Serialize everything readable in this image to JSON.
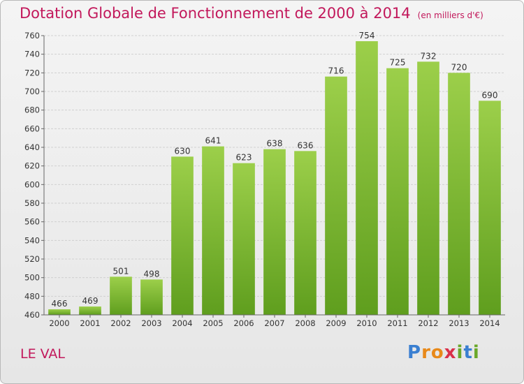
{
  "chart_data": {
    "type": "bar",
    "title": "Dotation Globale de Fonctionnement de 2000 à 2014",
    "subtitle": "(en milliers d'€)",
    "categories": [
      "2000",
      "2001",
      "2002",
      "2003",
      "2004",
      "2005",
      "2006",
      "2007",
      "2008",
      "2009",
      "2010",
      "2011",
      "2012",
      "2013",
      "2014"
    ],
    "values": [
      466,
      469,
      501,
      498,
      630,
      641,
      623,
      638,
      636,
      716,
      754,
      725,
      732,
      720,
      690
    ],
    "xlabel": "",
    "ylabel": "",
    "ylim": [
      460,
      760
    ],
    "yticks": [
      460,
      480,
      500,
      520,
      540,
      560,
      580,
      600,
      620,
      640,
      660,
      680,
      700,
      720,
      740,
      760
    ],
    "grid": true
  },
  "place_name": "LE VAL",
  "logo": {
    "letters": [
      "P",
      "r",
      "o",
      "x",
      "i",
      "t",
      "i"
    ]
  },
  "colors": {
    "title": "#c2185b",
    "bar_top": "#9ccf4a",
    "bar_bottom": "#5f9e1e",
    "logo": [
      "#3a7fd1",
      "#e8891a",
      "#e8891a",
      "#d9304a",
      "#6aa82a",
      "#3a7fd1",
      "#6aa82a"
    ]
  }
}
